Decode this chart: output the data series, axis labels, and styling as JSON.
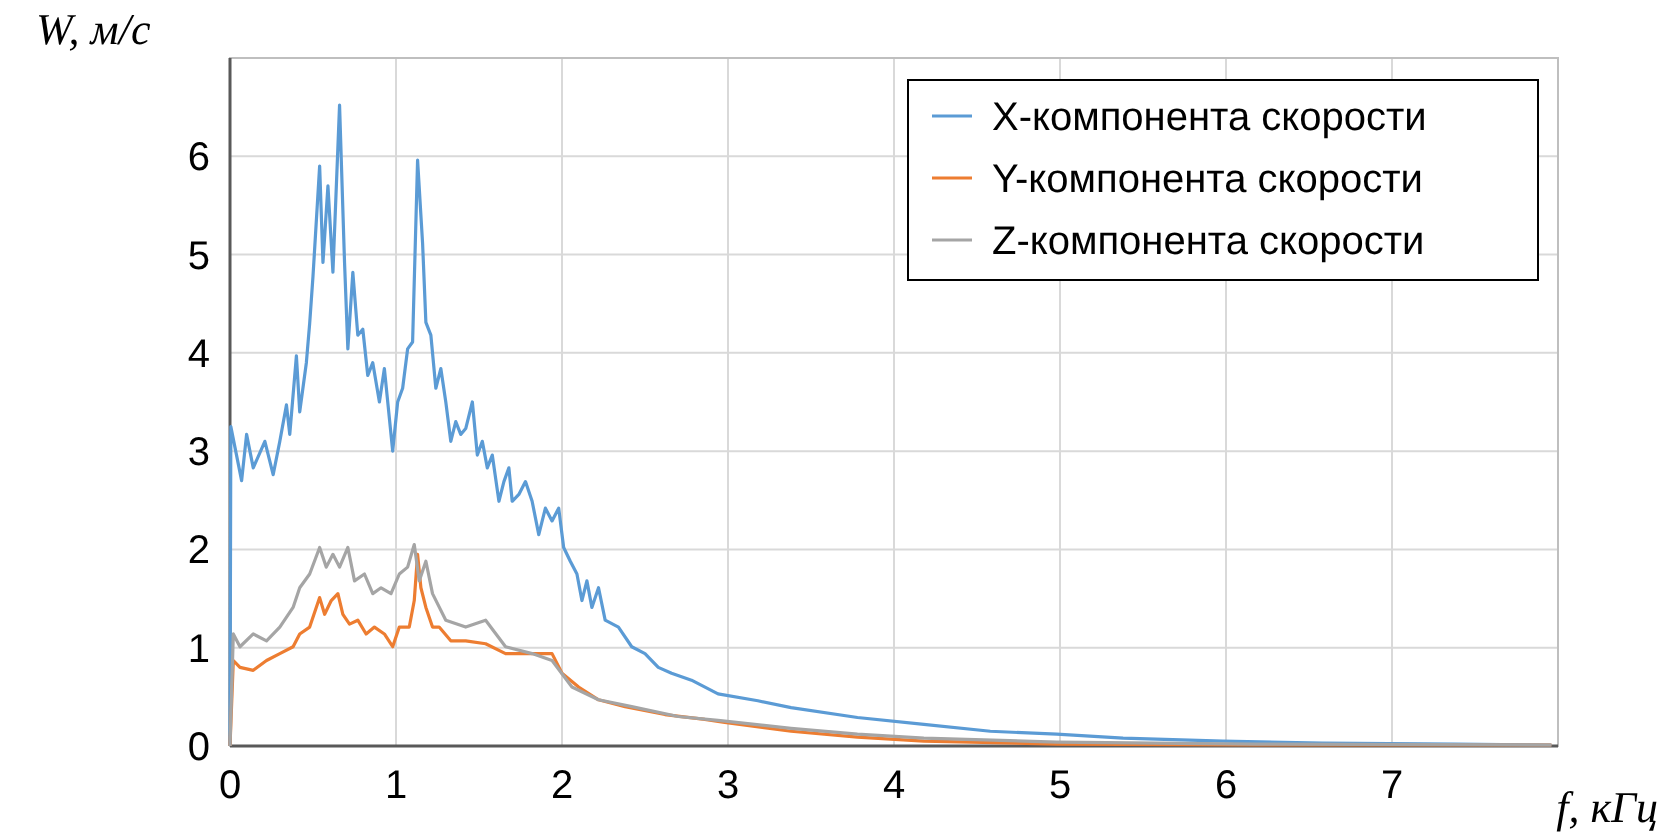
{
  "chart_data": {
    "type": "line",
    "xlabel": "f, кГц",
    "ylabel": "W, м/с",
    "xlim": [
      0,
      8
    ],
    "ylim": [
      0,
      7
    ],
    "xticks": [
      0,
      1,
      2,
      3,
      4,
      5,
      6,
      7,
      {
        "value": 8,
        "label": null
      }
    ],
    "yticks": [
      0,
      1,
      2,
      3,
      4,
      5,
      6,
      {
        "value": 7,
        "label": null
      }
    ],
    "grid": true,
    "legend": "top right",
    "marker": "none",
    "line_style": "solid",
    "series": [
      {
        "name": "X-компонента скорости",
        "color": "#5b9bd5",
        "x": [
          0,
          0.005,
          0.07,
          0.1,
          0.14,
          0.21,
          0.26,
          0.3,
          0.34,
          0.36,
          0.4,
          0.42,
          0.46,
          0.48,
          0.5,
          0.54,
          0.56,
          0.59,
          0.62,
          0.66,
          0.69,
          0.71,
          0.74,
          0.77,
          0.8,
          0.83,
          0.86,
          0.9,
          0.93,
          0.98,
          1.01,
          1.04,
          1.07,
          1.1,
          1.13,
          1.16,
          1.18,
          1.21,
          1.24,
          1.27,
          1.3,
          1.33,
          1.36,
          1.39,
          1.42,
          1.46,
          1.49,
          1.52,
          1.55,
          1.58,
          1.62,
          1.65,
          1.68,
          1.7,
          1.74,
          1.78,
          1.82,
          1.86,
          1.9,
          1.94,
          1.98,
          2.01,
          2.05,
          2.09,
          2.12,
          2.15,
          2.18,
          2.22,
          2.26,
          2.34,
          2.42,
          2.5,
          2.58,
          2.66,
          2.78,
          2.94,
          3.18,
          3.38,
          3.78,
          4.18,
          4.58,
          4.98,
          5.38,
          5.98,
          6.58,
          7.38,
          7.96
        ],
        "values": [
          0,
          3.25,
          2.7,
          3.17,
          2.83,
          3.1,
          2.76,
          3.1,
          3.47,
          3.17,
          3.97,
          3.4,
          3.9,
          4.3,
          4.78,
          5.9,
          4.92,
          5.7,
          4.82,
          6.52,
          4.92,
          4.04,
          4.82,
          4.18,
          4.24,
          3.77,
          3.9,
          3.5,
          3.84,
          3.0,
          3.5,
          3.64,
          4.04,
          4.11,
          5.96,
          5.12,
          4.31,
          4.18,
          3.64,
          3.84,
          3.5,
          3.1,
          3.3,
          3.17,
          3.23,
          3.5,
          2.96,
          3.1,
          2.83,
          2.96,
          2.49,
          2.69,
          2.83,
          2.49,
          2.56,
          2.69,
          2.49,
          2.15,
          2.42,
          2.29,
          2.42,
          2.02,
          1.88,
          1.75,
          1.48,
          1.68,
          1.41,
          1.61,
          1.28,
          1.21,
          1.01,
          0.94,
          0.8,
          0.74,
          0.67,
          0.53,
          0.46,
          0.39,
          0.29,
          0.22,
          0.15,
          0.12,
          0.08,
          0.05,
          0.03,
          0.02,
          0.01
        ]
      },
      {
        "name": "Y-компонента скорости",
        "color": "#ed7d31",
        "x": [
          0,
          0.02,
          0.06,
          0.14,
          0.22,
          0.3,
          0.38,
          0.42,
          0.48,
          0.54,
          0.57,
          0.61,
          0.65,
          0.68,
          0.72,
          0.77,
          0.82,
          0.87,
          0.93,
          0.98,
          1.02,
          1.08,
          1.11,
          1.13,
          1.15,
          1.18,
          1.22,
          1.26,
          1.33,
          1.42,
          1.54,
          1.66,
          1.78,
          1.94,
          2.0,
          2.1,
          2.22,
          2.38,
          2.62,
          2.86,
          2.98,
          3.38,
          3.78,
          4.18,
          4.98,
          6.18,
          7.96
        ],
        "values": [
          0,
          0.87,
          0.8,
          0.77,
          0.87,
          0.94,
          1.01,
          1.14,
          1.21,
          1.51,
          1.34,
          1.48,
          1.55,
          1.34,
          1.24,
          1.28,
          1.14,
          1.21,
          1.14,
          1.01,
          1.21,
          1.21,
          1.48,
          1.95,
          1.61,
          1.41,
          1.21,
          1.21,
          1.07,
          1.07,
          1.04,
          0.94,
          0.94,
          0.94,
          0.74,
          0.6,
          0.47,
          0.4,
          0.32,
          0.27,
          0.24,
          0.15,
          0.09,
          0.05,
          0.02,
          0.01,
          0.01
        ]
      },
      {
        "name": "Z-компонента скорости",
        "color": "#a5a5a5",
        "x": [
          0,
          0.02,
          0.06,
          0.14,
          0.22,
          0.3,
          0.38,
          0.42,
          0.48,
          0.54,
          0.58,
          0.62,
          0.66,
          0.71,
          0.75,
          0.81,
          0.86,
          0.91,
          0.97,
          1.02,
          1.07,
          1.11,
          1.14,
          1.18,
          1.22,
          1.3,
          1.42,
          1.54,
          1.66,
          1.82,
          1.94,
          2.06,
          2.22,
          2.42,
          2.7,
          2.94,
          3.38,
          3.78,
          4.18,
          4.98,
          6.18,
          7.96
        ],
        "values": [
          0,
          1.14,
          1.01,
          1.14,
          1.07,
          1.21,
          1.41,
          1.61,
          1.75,
          2.02,
          1.82,
          1.95,
          1.82,
          2.02,
          1.68,
          1.75,
          1.55,
          1.61,
          1.55,
          1.75,
          1.82,
          2.05,
          1.68,
          1.88,
          1.55,
          1.28,
          1.21,
          1.28,
          1.01,
          0.94,
          0.87,
          0.6,
          0.47,
          0.4,
          0.3,
          0.26,
          0.18,
          0.12,
          0.08,
          0.04,
          0.02,
          0.01
        ]
      }
    ]
  }
}
